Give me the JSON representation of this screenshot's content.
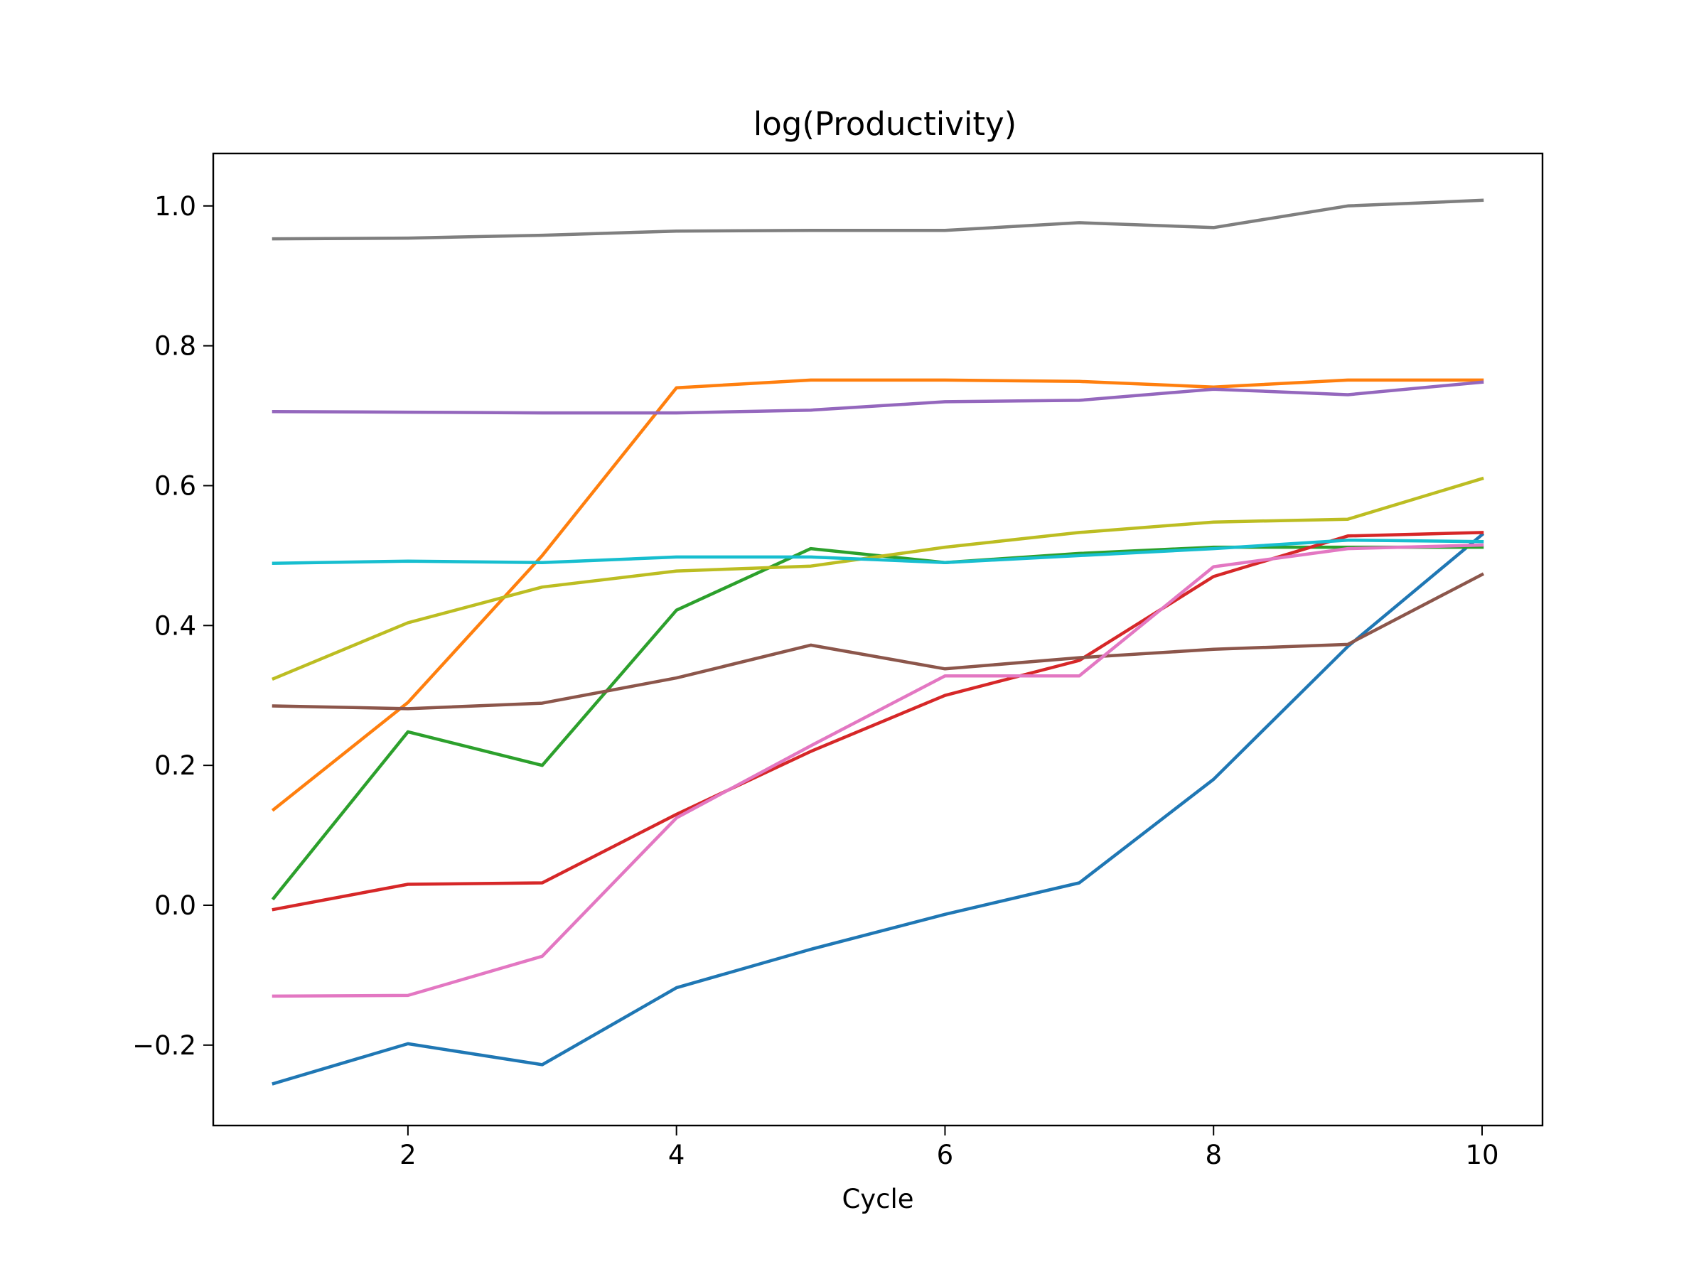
{
  "chart_data": {
    "type": "line",
    "title": "log(Productivity)",
    "xlabel": "Cycle",
    "ylabel": "",
    "xlim": [
      0.55,
      10.45
    ],
    "ylim": [
      -0.315,
      1.075
    ],
    "xticks": [
      2,
      4,
      6,
      8,
      10
    ],
    "xtick_labels": [
      "2",
      "4",
      "6",
      "8",
      "10"
    ],
    "yticks": [
      -0.2,
      0.0,
      0.2,
      0.4,
      0.6,
      0.8,
      1.0
    ],
    "ytick_labels": [
      "−0.2",
      "0.0",
      "0.2",
      "0.4",
      "0.6",
      "0.8",
      "1.0"
    ],
    "grid": false,
    "x": [
      1,
      2,
      3,
      4,
      5,
      6,
      7,
      8,
      9,
      10
    ],
    "series": [
      {
        "color": "#1f77b4",
        "values": [
          -0.255,
          -0.198,
          -0.228,
          -0.118,
          -0.063,
          -0.013,
          0.032,
          0.18,
          0.37,
          0.53
        ]
      },
      {
        "color": "#ff7f0e",
        "values": [
          0.137,
          0.29,
          0.5,
          0.74,
          0.751,
          0.751,
          0.749,
          0.741,
          0.751,
          0.751
        ]
      },
      {
        "color": "#2ca02c",
        "values": [
          0.01,
          0.248,
          0.2,
          0.422,
          0.51,
          0.49,
          0.503,
          0.512,
          0.512,
          0.512
        ]
      },
      {
        "color": "#d62728",
        "values": [
          -0.006,
          0.03,
          0.032,
          0.13,
          0.22,
          0.3,
          0.35,
          0.47,
          0.528,
          0.533
        ]
      },
      {
        "color": "#9467bd",
        "values": [
          0.706,
          0.705,
          0.704,
          0.704,
          0.708,
          0.72,
          0.722,
          0.738,
          0.73,
          0.748
        ]
      },
      {
        "color": "#8c564b",
        "values": [
          0.285,
          0.281,
          0.289,
          0.325,
          0.372,
          0.338,
          0.354,
          0.366,
          0.373,
          0.473
        ]
      },
      {
        "color": "#e377c2",
        "values": [
          -0.13,
          -0.129,
          -0.073,
          0.125,
          0.228,
          0.328,
          0.328,
          0.484,
          0.51,
          0.515
        ]
      },
      {
        "color": "#7f7f7f",
        "values": [
          0.953,
          0.954,
          0.958,
          0.964,
          0.965,
          0.965,
          0.976,
          0.969,
          1.0,
          1.008
        ]
      },
      {
        "color": "#bcbd22",
        "values": [
          0.324,
          0.404,
          0.455,
          0.478,
          0.485,
          0.512,
          0.533,
          0.548,
          0.552,
          0.61
        ]
      },
      {
        "color": "#17becf",
        "values": [
          0.489,
          0.492,
          0.49,
          0.498,
          0.498,
          0.49,
          0.5,
          0.51,
          0.522,
          0.52
        ]
      }
    ]
  }
}
